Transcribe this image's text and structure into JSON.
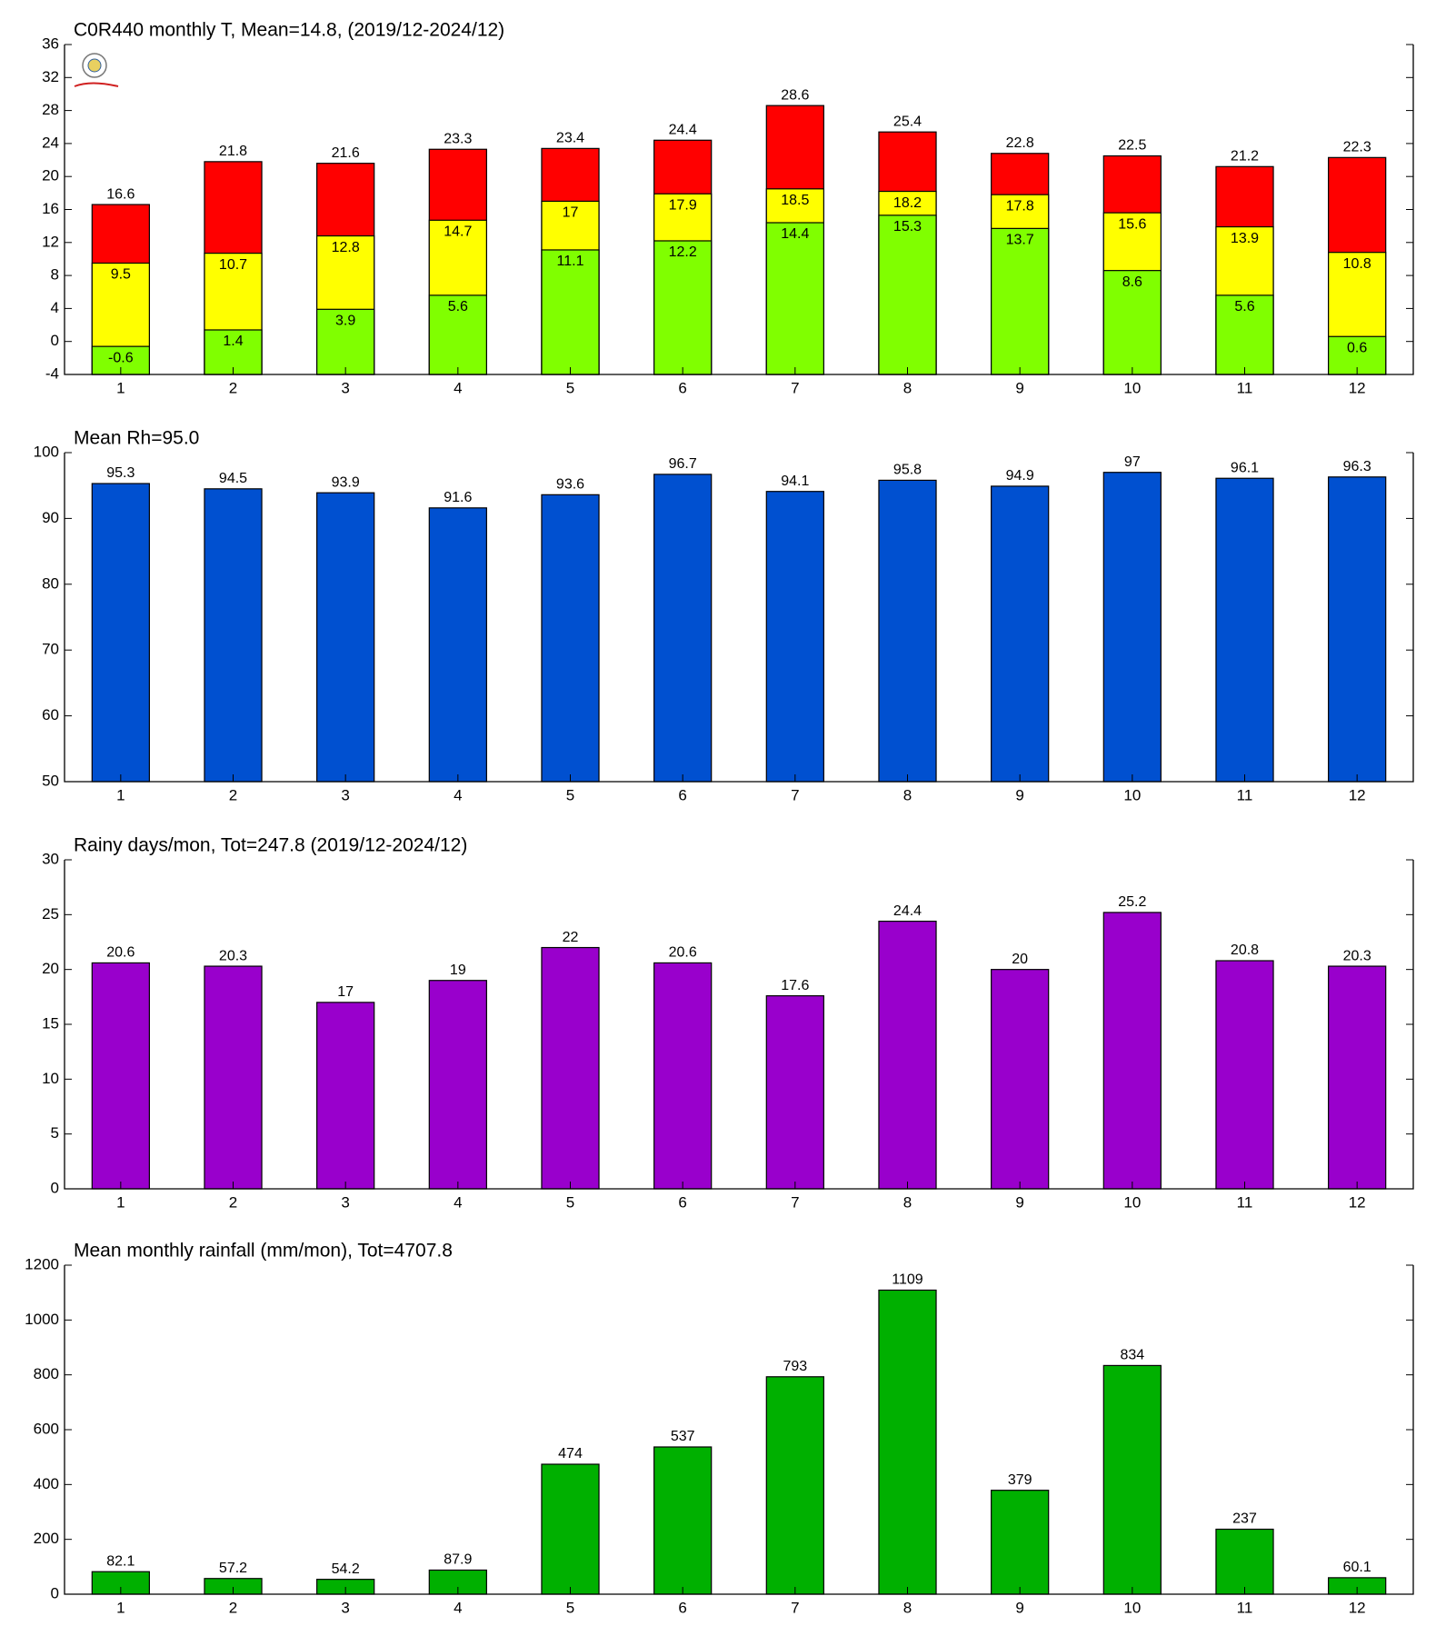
{
  "chart_data": [
    {
      "type": "bar",
      "title": "C0R440 monthly T, Mean=14.8, (2019/12-2024/12)",
      "categories": [
        "1",
        "2",
        "3",
        "4",
        "5",
        "6",
        "7",
        "8",
        "9",
        "10",
        "11",
        "12"
      ],
      "series": [
        {
          "color": "#ff0000",
          "values": [
            16.6,
            21.8,
            21.6,
            23.3,
            23.4,
            24.4,
            28.6,
            25.4,
            22.8,
            22.5,
            21.2,
            22.3
          ]
        },
        {
          "color": "#ffff00",
          "values": [
            9.5,
            10.7,
            12.8,
            14.7,
            17,
            17.9,
            18.5,
            18.2,
            17.8,
            15.6,
            13.9,
            10.8
          ]
        },
        {
          "color": "#80ff00",
          "values": [
            -0.6,
            1.4,
            3.9,
            5.6,
            11.1,
            12.2,
            14.4,
            15.3,
            13.7,
            8.6,
            5.6,
            0.6
          ]
        }
      ],
      "ylim": [
        -4,
        36
      ],
      "yticks": [
        -4,
        0,
        4,
        8,
        12,
        16,
        20,
        24,
        28,
        32,
        36
      ]
    },
    {
      "type": "bar",
      "title": "Mean Rh=95.0",
      "categories": [
        "1",
        "2",
        "3",
        "4",
        "5",
        "6",
        "7",
        "8",
        "9",
        "10",
        "11",
        "12"
      ],
      "values": [
        95.3,
        94.5,
        93.9,
        91.6,
        93.6,
        96.7,
        94.1,
        95.8,
        94.9,
        97,
        96.1,
        96.3
      ],
      "color": "#0050d0",
      "ylim": [
        50,
        100
      ],
      "yticks": [
        50,
        60,
        70,
        80,
        90,
        100
      ]
    },
    {
      "type": "bar",
      "title": "Rainy days/mon, Tot=247.8 (2019/12-2024/12)",
      "categories": [
        "1",
        "2",
        "3",
        "4",
        "5",
        "6",
        "7",
        "8",
        "9",
        "10",
        "11",
        "12"
      ],
      "values": [
        20.6,
        20.3,
        17,
        19,
        22,
        20.6,
        17.6,
        24.4,
        20,
        25.2,
        20.8,
        20.3
      ],
      "color": "#9900cc",
      "ylim": [
        0,
        30
      ],
      "yticks": [
        0,
        5,
        10,
        15,
        20,
        25,
        30
      ]
    },
    {
      "type": "bar",
      "title": "Mean monthly rainfall (mm/mon), Tot=4707.8",
      "categories": [
        "1",
        "2",
        "3",
        "4",
        "5",
        "6",
        "7",
        "8",
        "9",
        "10",
        "11",
        "12"
      ],
      "values": [
        82.1,
        57.2,
        54.2,
        87.9,
        474,
        537,
        793,
        1109,
        379,
        834,
        237,
        60.1
      ],
      "color": "#00b000",
      "ylim": [
        0,
        1200
      ],
      "yticks": [
        0,
        200,
        400,
        600,
        800,
        1000,
        1200
      ]
    }
  ]
}
